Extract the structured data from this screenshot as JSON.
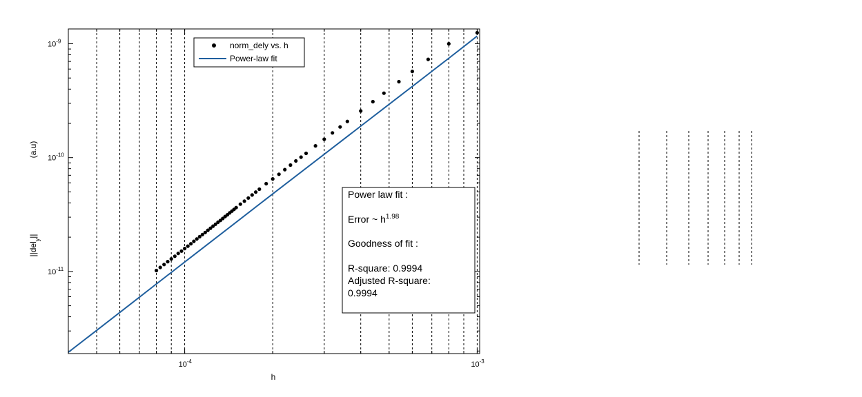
{
  "chart_data": {
    "type": "scatter",
    "xlabel": "h",
    "ylabel": "||del_y||",
    "ylabel_unit": "(a.u)",
    "xscale": "log",
    "yscale": "log",
    "xlim": [
      4e-05,
      0.00102
    ],
    "ylim": [
      1.9e-12,
      1.35e-09
    ],
    "x_ticks": [
      {
        "value": 0.0001,
        "base": "10",
        "exp": "-4"
      },
      {
        "value": 0.001,
        "base": "10",
        "exp": "-3"
      }
    ],
    "y_ticks": [
      {
        "value": 1e-11,
        "base": "10",
        "exp": "-11"
      },
      {
        "value": 1e-10,
        "base": "10",
        "exp": "-10"
      },
      {
        "value": 1e-09,
        "base": "10",
        "exp": "-9"
      }
    ],
    "x_grid": [
      5e-05,
      6e-05,
      7e-05,
      8e-05,
      9e-05,
      0.0001,
      0.0002,
      0.0003,
      0.0004,
      0.0005,
      0.0006,
      0.0007,
      0.0008,
      0.0009,
      0.001
    ],
    "grid": "x-major-minor-dashed",
    "legend_position": "top-center",
    "series": [
      {
        "name": "norm_dely vs. h",
        "kind": "points",
        "color": "#000000",
        "x": [
          8e-05,
          8.25e-05,
          8.5e-05,
          8.75e-05,
          9e-05,
          9.25e-05,
          9.5e-05,
          9.75e-05,
          0.0001,
          0.0001025,
          0.000105,
          0.0001075,
          0.00011,
          0.0001125,
          0.000115,
          0.0001175,
          0.00012,
          0.0001225,
          0.000125,
          0.0001275,
          0.00013,
          0.0001325,
          0.000135,
          0.0001375,
          0.00014,
          0.0001425,
          0.000145,
          0.0001475,
          0.00015,
          0.000155,
          0.00016,
          0.000165,
          0.00017,
          0.000175,
          0.00018,
          0.00019,
          0.0002,
          0.00021,
          0.00022,
          0.00023,
          0.00024,
          0.00025,
          0.00026,
          0.00028,
          0.0003,
          0.00032,
          0.00034,
          0.00036,
          0.0004,
          0.00044,
          0.00048,
          0.00054,
          0.0006,
          0.00068,
          0.0008,
          0.001
        ],
        "y": [
          1.02e-11,
          1.085e-11,
          1.15e-11,
          1.22e-11,
          1.29e-11,
          1.36e-11,
          1.44e-11,
          1.51e-11,
          1.59e-11,
          1.67e-11,
          1.75e-11,
          1.84e-11,
          1.93e-11,
          2.02e-11,
          2.11e-11,
          2.2e-11,
          2.3e-11,
          2.4e-11,
          2.5e-11,
          2.6e-11,
          2.71e-11,
          2.81e-11,
          2.92e-11,
          3.04e-11,
          3.15e-11,
          3.27e-11,
          3.39e-11,
          3.51e-11,
          3.64e-11,
          3.9e-11,
          4.15e-11,
          4.42e-11,
          4.7e-11,
          4.98e-11,
          5.28e-11,
          5.9e-11,
          6.5e-11,
          7.15e-11,
          7.85e-11,
          8.6e-11,
          9.35e-11,
          1.01e-10,
          1.09e-10,
          1.27e-10,
          1.45e-10,
          1.65e-10,
          1.86e-10,
          2.08e-10,
          2.57e-10,
          3.1e-10,
          3.68e-10,
          4.65e-10,
          5.72e-10,
          7.3e-10,
          1e-09,
          1.25e-09
        ]
      },
      {
        "name": "Power-law fit",
        "kind": "line",
        "color": "#1f5f9e",
        "exponent": 1.98,
        "x": [
          4e-05,
          5e-05,
          6e-05,
          7e-05,
          8e-05,
          0.0001,
          0.00015,
          0.0002,
          0.0003,
          0.0004,
          0.0005,
          0.0006,
          0.0007,
          0.0008,
          0.0009,
          0.001
        ],
        "y": [
          1.95e-12,
          3.04e-12,
          4.37e-12,
          5.94e-12,
          7.77e-12,
          1.21e-11,
          2.71e-11,
          4.8e-11,
          1.07e-10,
          1.89e-10,
          2.94e-10,
          4.22e-10,
          5.73e-10,
          7.47e-10,
          9.45e-10,
          1.17e-09
        ]
      }
    ],
    "annotation": {
      "title": "Power law fit :",
      "error_prefix": "Error ~ h",
      "error_exp": "1.98",
      "goodness": "Goodness of fit :",
      "rsquare": "R-square: 0.9994",
      "adj_rsquare_label": "Adjusted R-square:",
      "adj_rsquare_value": "0.9994"
    }
  }
}
